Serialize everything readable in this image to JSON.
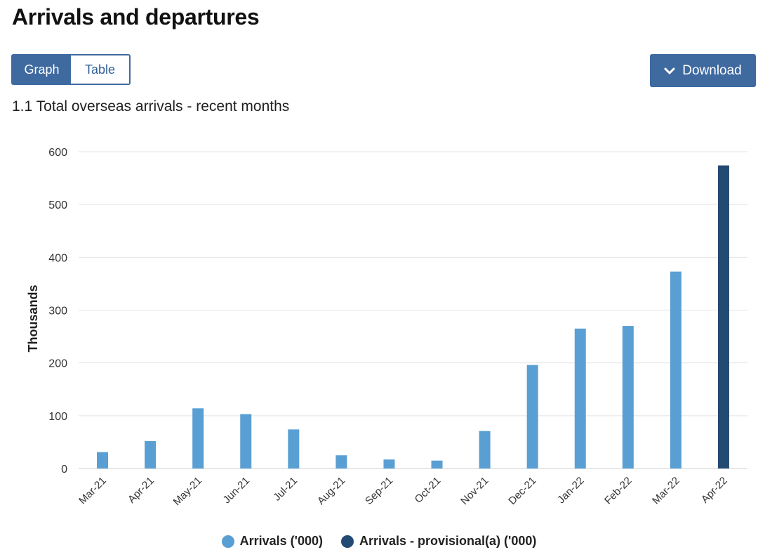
{
  "page": {
    "title": "Arrivals and departures"
  },
  "view_toggle": {
    "graph_label": "Graph",
    "table_label": "Table",
    "selected": "Graph"
  },
  "download": {
    "label": "Download",
    "icon": "chevron-down-icon"
  },
  "colors": {
    "accent": "#3f6aa0",
    "arrivals": "#5a9fd4",
    "provisional": "#234a73",
    "grid": "#e3e3e3"
  },
  "chart_data": {
    "type": "bar",
    "title": "1.1 Total overseas arrivals - recent months",
    "xlabel": "",
    "ylabel": "Thousands",
    "ylim": [
      0,
      600
    ],
    "yticks": [
      0,
      100,
      200,
      300,
      400,
      500,
      600
    ],
    "grid": true,
    "legend_position": "bottom",
    "categories": [
      "Mar-21",
      "Apr-21",
      "May-21",
      "Jun-21",
      "Jul-21",
      "Aug-21",
      "Sep-21",
      "Oct-21",
      "Nov-21",
      "Dec-21",
      "Jan-22",
      "Feb-22",
      "Mar-22",
      "Apr-22"
    ],
    "series": [
      {
        "name": "Arrivals ('000)",
        "color": "#5a9fd4",
        "values": [
          31,
          52,
          114,
          103,
          74,
          25,
          17,
          15,
          71,
          196,
          265,
          270,
          373,
          null
        ]
      },
      {
        "name": "Arrivals - provisional(a) ('000)",
        "color": "#234a73",
        "values": [
          null,
          null,
          null,
          null,
          null,
          null,
          null,
          null,
          null,
          null,
          null,
          null,
          null,
          574
        ]
      }
    ]
  }
}
